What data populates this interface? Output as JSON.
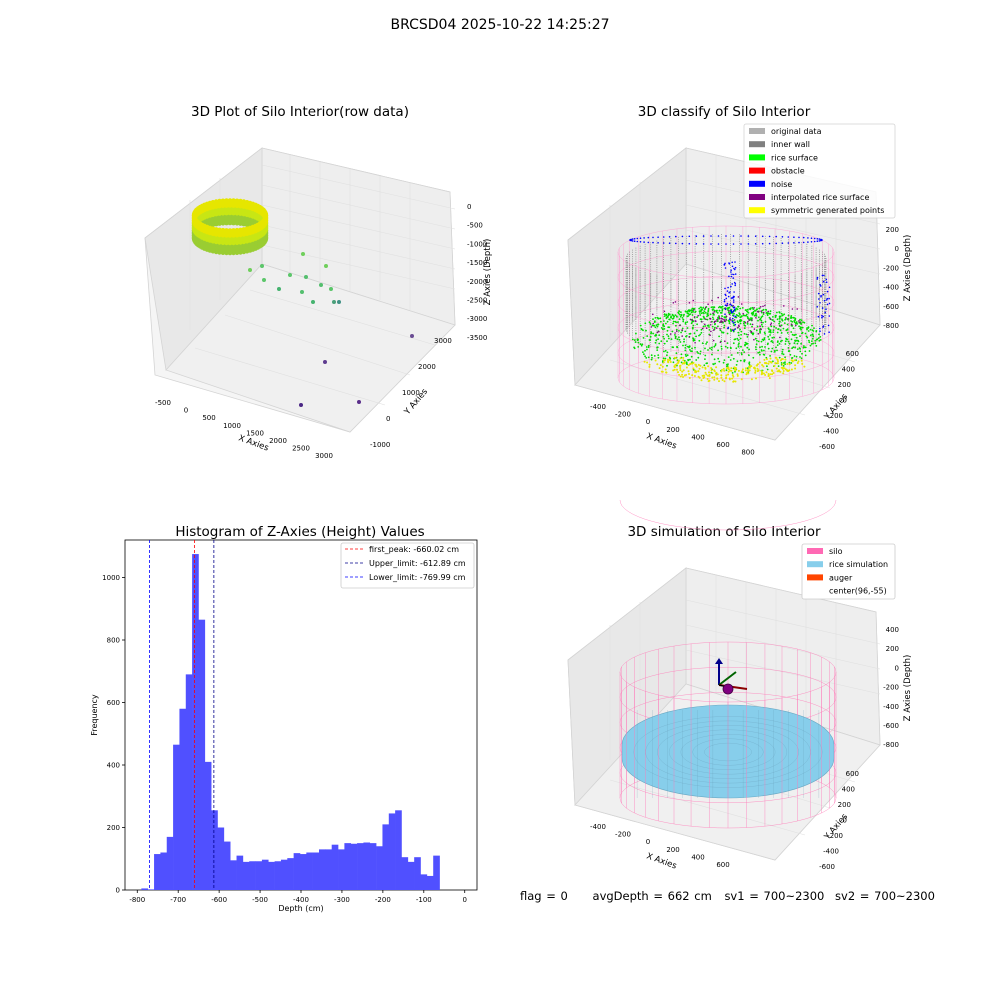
{
  "figure": {
    "suptitle": "BRCSD04 2025-10-22 14:25:27"
  },
  "panel_tl": {
    "title": "3D Plot of Silo Interior(row data)",
    "xlabel": "X Axies",
    "ylabel": "Y Axies",
    "zlabel": "Z Axies (Depth)",
    "xticks": [
      "-500",
      "0",
      "500",
      "1000",
      "1500",
      "2000",
      "2500",
      "3000"
    ],
    "yticks": [
      "-1000",
      "0",
      "1000",
      "2000",
      "3000"
    ],
    "zticks": [
      "0",
      "-500",
      "-1000",
      "-1500",
      "-2000",
      "-2500",
      "-3000",
      "-3500"
    ]
  },
  "panel_tr": {
    "title": "3D classify of Silo Interior",
    "xlabel": "X Axies",
    "ylabel": "Y Axies",
    "zlabel": "Z Axies (Depth)",
    "xticks": [
      "-400",
      "-200",
      "0",
      "200",
      "400",
      "600",
      "800"
    ],
    "yticks": [
      "600",
      "400",
      "200",
      "0",
      "-200",
      "-400",
      "-600"
    ],
    "zticks": [
      "200",
      "0",
      "-200",
      "-400",
      "-600",
      "-800"
    ],
    "legend": [
      {
        "label": "original data",
        "color": "#b0b0b0"
      },
      {
        "label": "inner wall",
        "color": "#808080"
      },
      {
        "label": "rice surface",
        "color": "#00ff00"
      },
      {
        "label": "obstacle",
        "color": "#ff0000"
      },
      {
        "label": "noise",
        "color": "#0000ff"
      },
      {
        "label": "interpolated rice surface",
        "color": "#800080"
      },
      {
        "label": "symmetric generated points",
        "color": "#ffff00"
      }
    ]
  },
  "panel_br": {
    "title": "3D simulation of Silo Interior",
    "xlabel": "X Axies",
    "ylabel": "Y Axies",
    "zlabel": "Z Axies (Depth)",
    "xticks": [
      "-400",
      "-200",
      "0",
      "200",
      "400",
      "600"
    ],
    "yticks": [
      "600",
      "400",
      "200",
      "0",
      "-200",
      "-400",
      "-600"
    ],
    "zticks": [
      "400",
      "200",
      "0",
      "-200",
      "-400",
      "-600",
      "-800"
    ],
    "legend": [
      {
        "label": "silo",
        "color": "#ff69b4"
      },
      {
        "label": "rice simulation",
        "color": "#87ceeb"
      },
      {
        "label": "auger",
        "color": "#ff4500"
      },
      {
        "label": "center(96,-55)",
        "color": "#ffffff"
      }
    ]
  },
  "footer": {
    "flag": "flag = 0",
    "avg": "avgDepth = 662 cm",
    "sv1": "sv1 = 700~2300",
    "sv2": "sv2 = 700~2300"
  },
  "chart_data": [
    {
      "type": "scatter",
      "title": "3D Plot of Silo Interior(row data)",
      "xlabel": "X Axies",
      "ylabel": "Y Axies",
      "zlabel": "Z Axies (Depth)",
      "xlim": [
        -700,
        3100
      ],
      "ylim": [
        -1200,
        3100
      ],
      "zlim": [
        -3800,
        100
      ]
    },
    {
      "type": "scatter",
      "title": "3D classify of Silo Interior",
      "xlabel": "X Axies",
      "ylabel": "Y Axies",
      "zlabel": "Z Axies (Depth)",
      "series": [
        {
          "name": "original data"
        },
        {
          "name": "inner wall"
        },
        {
          "name": "rice surface"
        },
        {
          "name": "obstacle"
        },
        {
          "name": "noise"
        },
        {
          "name": "interpolated rice surface"
        },
        {
          "name": "symmetric generated points"
        }
      ],
      "legend": "top-right"
    },
    {
      "type": "bar",
      "title": "Histogram of Z-Axies (Height) Values",
      "xlabel": "Depth (cm)",
      "ylabel": "Frequency",
      "xlim": [
        -830,
        30
      ],
      "ylim": [
        0,
        1120
      ],
      "xticks": [
        -800,
        -700,
        -600,
        -500,
        -400,
        -300,
        -200,
        -100,
        0
      ],
      "yticks": [
        0,
        200,
        400,
        600,
        800,
        1000
      ],
      "bin_width": 15.5,
      "bin_start": -790,
      "values": [
        5,
        2,
        115,
        120,
        170,
        465,
        580,
        690,
        1075,
        865,
        410,
        255,
        200,
        155,
        95,
        110,
        90,
        92,
        92,
        97,
        90,
        92,
        97,
        102,
        118,
        115,
        120,
        120,
        130,
        130,
        145,
        130,
        150,
        148,
        150,
        152,
        150,
        140,
        210,
        245,
        255,
        105,
        90,
        105,
        50,
        45,
        110
      ],
      "lines": [
        {
          "label": "first_peak: -660.02 cm",
          "x": -660.02,
          "color": "#ff0000"
        },
        {
          "label": "Upper_limit: -612.89 cm",
          "x": -612.89,
          "color": "#00008b"
        },
        {
          "label": "Lower_limit: -769.99 cm",
          "x": -769.99,
          "color": "#0000ff"
        }
      ],
      "bar_color": "#5050ff",
      "legend": "top-right"
    },
    {
      "type": "scatter",
      "title": "3D simulation of Silo Interior",
      "xlabel": "X Axies",
      "ylabel": "Y Axies",
      "zlabel": "Z Axies (Depth)",
      "series": [
        {
          "name": "silo"
        },
        {
          "name": "rice simulation"
        },
        {
          "name": "auger"
        },
        {
          "name": "center(96,-55)"
        }
      ],
      "legend": "top-right"
    }
  ]
}
